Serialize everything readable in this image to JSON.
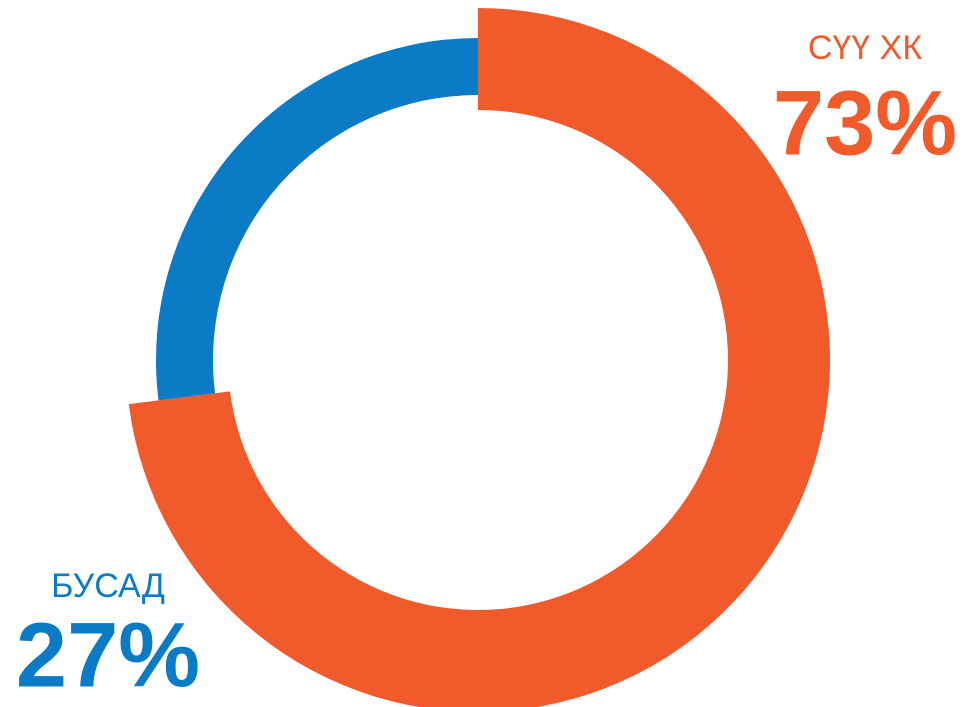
{
  "chart_data": {
    "type": "donut",
    "categories": [
      "СҮҮ ХК",
      "БУСАД"
    ],
    "values": [
      73,
      27
    ],
    "value_labels": [
      "73%",
      "27%"
    ],
    "colors": [
      "#f15a2b",
      "#0a7bc4"
    ]
  }
}
